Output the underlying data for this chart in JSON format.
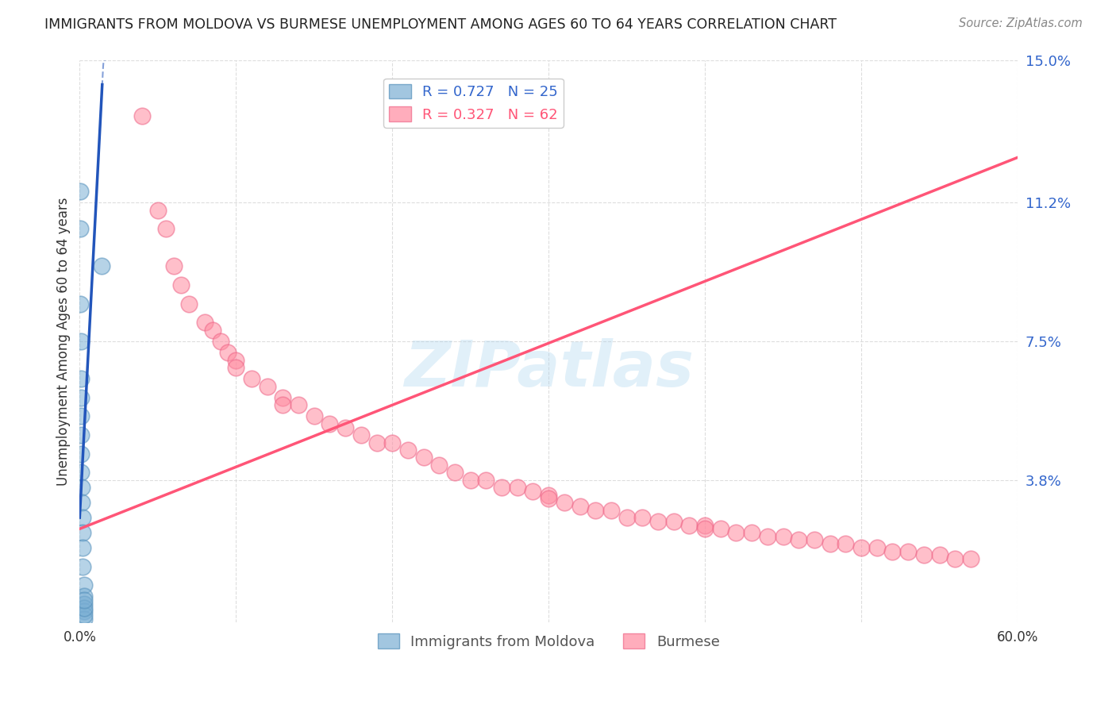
{
  "title": "IMMIGRANTS FROM MOLDOVA VS BURMESE UNEMPLOYMENT AMONG AGES 60 TO 64 YEARS CORRELATION CHART",
  "source": "Source: ZipAtlas.com",
  "ylabel": "Unemployment Among Ages 60 to 64 years",
  "xlim": [
    0,
    0.6
  ],
  "ylim": [
    0,
    0.15
  ],
  "yticks": [
    0.038,
    0.075,
    0.112,
    0.15
  ],
  "ytick_labels": [
    "3.8%",
    "7.5%",
    "11.2%",
    "15.0%"
  ],
  "xticks": [
    0.0,
    0.1,
    0.2,
    0.3,
    0.4,
    0.5,
    0.6
  ],
  "xtick_labels": [
    "0.0%",
    "",
    "",
    "",
    "",
    "",
    "60.0%"
  ],
  "moldova_points": [
    [
      0.0005,
      0.115
    ],
    [
      0.0005,
      0.105
    ],
    [
      0.0005,
      0.085
    ],
    [
      0.001,
      0.075
    ],
    [
      0.001,
      0.065
    ],
    [
      0.001,
      0.06
    ],
    [
      0.001,
      0.055
    ],
    [
      0.001,
      0.05
    ],
    [
      0.001,
      0.045
    ],
    [
      0.001,
      0.04
    ],
    [
      0.0015,
      0.036
    ],
    [
      0.0015,
      0.032
    ],
    [
      0.002,
      0.028
    ],
    [
      0.002,
      0.024
    ],
    [
      0.002,
      0.02
    ],
    [
      0.002,
      0.015
    ],
    [
      0.003,
      0.01
    ],
    [
      0.003,
      0.007
    ],
    [
      0.003,
      0.005
    ],
    [
      0.003,
      0.003
    ],
    [
      0.003,
      0.001
    ],
    [
      0.003,
      0.002
    ],
    [
      0.003,
      0.004
    ],
    [
      0.003,
      0.006
    ],
    [
      0.014,
      0.095
    ]
  ],
  "burmese_points": [
    [
      0.04,
      0.135
    ],
    [
      0.05,
      0.11
    ],
    [
      0.055,
      0.105
    ],
    [
      0.06,
      0.095
    ],
    [
      0.065,
      0.09
    ],
    [
      0.07,
      0.085
    ],
    [
      0.08,
      0.08
    ],
    [
      0.085,
      0.078
    ],
    [
      0.09,
      0.075
    ],
    [
      0.095,
      0.072
    ],
    [
      0.1,
      0.07
    ],
    [
      0.1,
      0.068
    ],
    [
      0.11,
      0.065
    ],
    [
      0.12,
      0.063
    ],
    [
      0.13,
      0.06
    ],
    [
      0.13,
      0.058
    ],
    [
      0.14,
      0.058
    ],
    [
      0.15,
      0.055
    ],
    [
      0.16,
      0.053
    ],
    [
      0.17,
      0.052
    ],
    [
      0.18,
      0.05
    ],
    [
      0.19,
      0.048
    ],
    [
      0.2,
      0.048
    ],
    [
      0.21,
      0.046
    ],
    [
      0.22,
      0.044
    ],
    [
      0.23,
      0.042
    ],
    [
      0.24,
      0.04
    ],
    [
      0.25,
      0.038
    ],
    [
      0.26,
      0.038
    ],
    [
      0.27,
      0.036
    ],
    [
      0.28,
      0.036
    ],
    [
      0.29,
      0.035
    ],
    [
      0.3,
      0.034
    ],
    [
      0.3,
      0.033
    ],
    [
      0.31,
      0.032
    ],
    [
      0.32,
      0.031
    ],
    [
      0.33,
      0.03
    ],
    [
      0.34,
      0.03
    ],
    [
      0.35,
      0.028
    ],
    [
      0.36,
      0.028
    ],
    [
      0.37,
      0.027
    ],
    [
      0.38,
      0.027
    ],
    [
      0.39,
      0.026
    ],
    [
      0.4,
      0.026
    ],
    [
      0.4,
      0.025
    ],
    [
      0.41,
      0.025
    ],
    [
      0.42,
      0.024
    ],
    [
      0.43,
      0.024
    ],
    [
      0.44,
      0.023
    ],
    [
      0.45,
      0.023
    ],
    [
      0.46,
      0.022
    ],
    [
      0.47,
      0.022
    ],
    [
      0.48,
      0.021
    ],
    [
      0.49,
      0.021
    ],
    [
      0.5,
      0.02
    ],
    [
      0.51,
      0.02
    ],
    [
      0.52,
      0.019
    ],
    [
      0.53,
      0.019
    ],
    [
      0.54,
      0.018
    ],
    [
      0.55,
      0.018
    ],
    [
      0.56,
      0.017
    ],
    [
      0.57,
      0.017
    ]
  ],
  "moldova_color": "#7BAFD4",
  "moldova_edge": "#5590BB",
  "burmese_color": "#FF8BA0",
  "burmese_edge": "#EE6688",
  "moldova_trend_color": "#2255BB",
  "burmese_trend_color": "#FF5577",
  "moldova_trend_slope": 8.0,
  "moldova_trend_intercept": 0.028,
  "burmese_trend_slope": 0.165,
  "burmese_trend_intercept": 0.025,
  "watermark": "ZIPatlas",
  "background_color": "#FFFFFF",
  "grid_color": "#DDDDDD",
  "legend1_label1": "R = 0.727   N = 25",
  "legend1_label2": "R = 0.327   N = 62",
  "legend2_label1": "Immigrants from Moldova",
  "legend2_label2": "Burmese"
}
